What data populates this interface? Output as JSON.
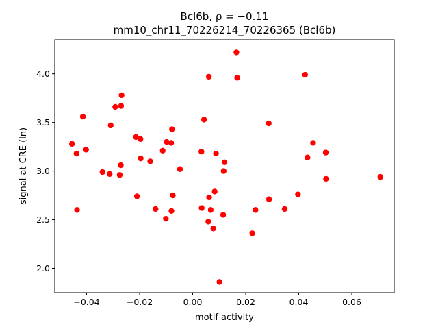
{
  "chart_data": {
    "type": "scatter",
    "title_line1": "Bcl6b, ρ = −0.11",
    "title_line2": "mm10_chr11_70226214_70226365 (Bcl6b)",
    "xlabel": "motif activity",
    "ylabel": "signal at CRE (ln)",
    "xlim": [
      -0.052,
      0.076
    ],
    "ylim": [
      1.75,
      4.35
    ],
    "xticks": [
      -0.04,
      -0.02,
      0.0,
      0.02,
      0.04,
      0.06
    ],
    "xtick_labels": [
      "−0.04",
      "−0.02",
      "0.00",
      "0.02",
      "0.04",
      "0.06"
    ],
    "yticks": [
      2.0,
      2.5,
      3.0,
      3.5,
      4.0
    ],
    "ytick_labels": [
      "2.0",
      "2.5",
      "3.0",
      "3.5",
      "4.0"
    ],
    "grid": false,
    "marker_color": "#ff0000",
    "points": [
      {
        "x": -0.0455,
        "y": 3.28
      },
      {
        "x": -0.0438,
        "y": 3.18
      },
      {
        "x": -0.0436,
        "y": 2.6
      },
      {
        "x": -0.0414,
        "y": 3.56
      },
      {
        "x": -0.0402,
        "y": 3.22
      },
      {
        "x": -0.034,
        "y": 2.99
      },
      {
        "x": -0.0313,
        "y": 2.97
      },
      {
        "x": -0.0309,
        "y": 3.47
      },
      {
        "x": -0.0292,
        "y": 3.66
      },
      {
        "x": -0.0275,
        "y": 2.96
      },
      {
        "x": -0.0271,
        "y": 3.06
      },
      {
        "x": -0.027,
        "y": 3.67
      },
      {
        "x": -0.0268,
        "y": 3.78
      },
      {
        "x": -0.0214,
        "y": 3.35
      },
      {
        "x": -0.021,
        "y": 2.74
      },
      {
        "x": -0.0197,
        "y": 3.33
      },
      {
        "x": -0.0196,
        "y": 3.13
      },
      {
        "x": -0.016,
        "y": 3.1
      },
      {
        "x": -0.014,
        "y": 2.61
      },
      {
        "x": -0.0113,
        "y": 3.21
      },
      {
        "x": -0.0101,
        "y": 2.51
      },
      {
        "x": -0.0098,
        "y": 3.3
      },
      {
        "x": -0.0081,
        "y": 3.29
      },
      {
        "x": -0.008,
        "y": 2.59
      },
      {
        "x": -0.0078,
        "y": 3.43
      },
      {
        "x": -0.0075,
        "y": 2.75
      },
      {
        "x": -0.0048,
        "y": 3.02
      },
      {
        "x": 0.0033,
        "y": 3.2
      },
      {
        "x": 0.0034,
        "y": 2.62
      },
      {
        "x": 0.0043,
        "y": 3.53
      },
      {
        "x": 0.0059,
        "y": 2.48
      },
      {
        "x": 0.0061,
        "y": 3.97
      },
      {
        "x": 0.0062,
        "y": 2.73
      },
      {
        "x": 0.0068,
        "y": 2.6
      },
      {
        "x": 0.0078,
        "y": 2.41
      },
      {
        "x": 0.0083,
        "y": 2.79
      },
      {
        "x": 0.0088,
        "y": 3.18
      },
      {
        "x": 0.0101,
        "y": 1.86
      },
      {
        "x": 0.0115,
        "y": 2.55
      },
      {
        "x": 0.0117,
        "y": 3.0
      },
      {
        "x": 0.012,
        "y": 3.09
      },
      {
        "x": 0.0165,
        "y": 4.22
      },
      {
        "x": 0.0168,
        "y": 3.96
      },
      {
        "x": 0.0225,
        "y": 2.36
      },
      {
        "x": 0.0237,
        "y": 2.6
      },
      {
        "x": 0.0287,
        "y": 3.49
      },
      {
        "x": 0.0288,
        "y": 2.71
      },
      {
        "x": 0.0347,
        "y": 2.61
      },
      {
        "x": 0.0397,
        "y": 2.76
      },
      {
        "x": 0.0424,
        "y": 3.99
      },
      {
        "x": 0.0433,
        "y": 3.14
      },
      {
        "x": 0.0454,
        "y": 3.29
      },
      {
        "x": 0.0502,
        "y": 3.19
      },
      {
        "x": 0.0503,
        "y": 2.92
      },
      {
        "x": 0.0708,
        "y": 2.94
      }
    ]
  }
}
